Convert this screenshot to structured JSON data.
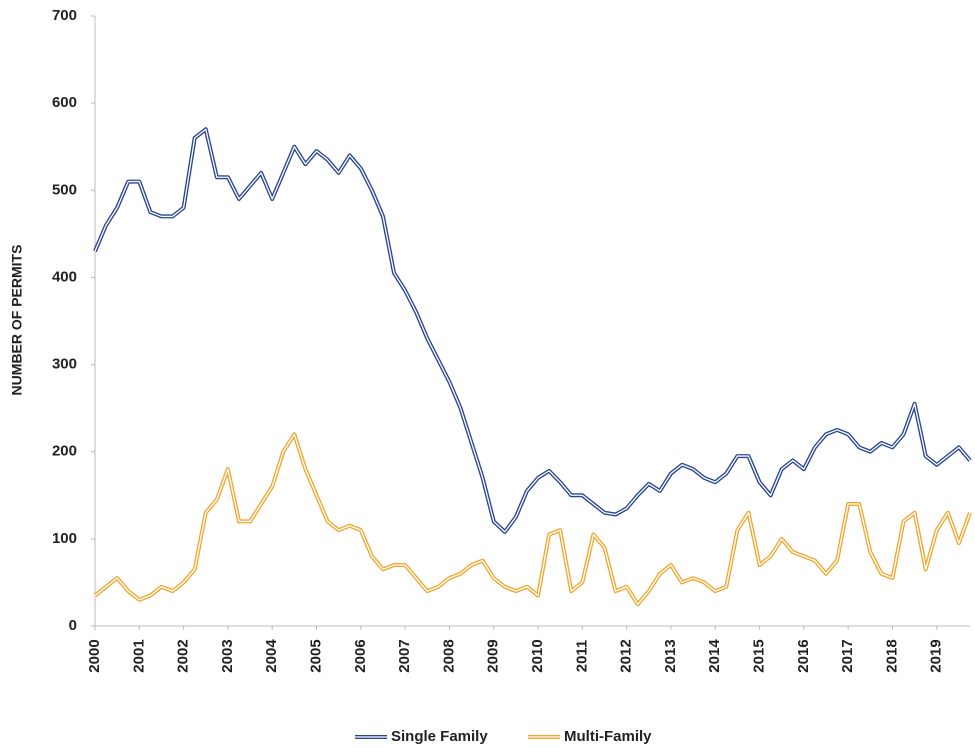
{
  "chart_data": {
    "type": "line",
    "y_label": "NUMBER OF PERMITS",
    "x": [
      2000,
      2000.25,
      2000.5,
      2000.75,
      2001,
      2001.25,
      2001.5,
      2001.75,
      2002,
      2002.25,
      2002.5,
      2002.75,
      2003,
      2003.25,
      2003.5,
      2003.75,
      2004,
      2004.25,
      2004.5,
      2004.75,
      2005,
      2005.25,
      2005.5,
      2005.75,
      2006,
      2006.25,
      2006.5,
      2006.75,
      2007,
      2007.25,
      2007.5,
      2007.75,
      2008,
      2008.25,
      2008.5,
      2008.75,
      2009,
      2009.25,
      2009.5,
      2009.75,
      2010,
      2010.25,
      2010.5,
      2010.75,
      2011,
      2011.25,
      2011.5,
      2011.75,
      2012,
      2012.25,
      2012.5,
      2012.75,
      2013,
      2013.25,
      2013.5,
      2013.75,
      2014,
      2014.25,
      2014.5,
      2014.75,
      2015,
      2015.25,
      2015.5,
      2015.75,
      2016,
      2016.25,
      2016.5,
      2016.75,
      2017,
      2017.25,
      2017.5,
      2017.75,
      2018,
      2018.25,
      2018.5,
      2018.75,
      2019,
      2019.25,
      2019.5,
      2019.75
    ],
    "series": [
      {
        "name": "Single Family",
        "color": "#2a4690",
        "values": [
          430,
          460,
          480,
          510,
          510,
          475,
          470,
          470,
          480,
          560,
          570,
          515,
          515,
          490,
          505,
          520,
          490,
          520,
          550,
          530,
          545,
          535,
          520,
          540,
          525,
          500,
          470,
          405,
          385,
          360,
          330,
          305,
          280,
          250,
          210,
          170,
          120,
          108,
          125,
          155,
          170,
          178,
          165,
          150,
          150,
          140,
          130,
          128,
          135,
          150,
          163,
          155,
          175,
          185,
          180,
          170,
          165,
          175,
          195,
          195,
          165,
          150,
          180,
          190,
          180,
          205,
          220,
          225,
          220,
          205,
          200,
          210,
          205,
          220,
          255,
          195,
          185,
          195,
          205,
          190
        ]
      },
      {
        "name": "Multi-Family",
        "color": "#f0a830",
        "values": [
          35,
          45,
          55,
          40,
          30,
          35,
          45,
          40,
          50,
          65,
          130,
          145,
          180,
          120,
          120,
          140,
          160,
          200,
          220,
          180,
          150,
          120,
          110,
          115,
          110,
          80,
          65,
          70,
          70,
          55,
          40,
          45,
          55,
          60,
          70,
          75,
          55,
          45,
          40,
          45,
          35,
          105,
          110,
          40,
          50,
          105,
          90,
          40,
          45,
          25,
          40,
          60,
          70,
          50,
          55,
          50,
          40,
          45,
          110,
          130,
          70,
          80,
          100,
          85,
          80,
          75,
          60,
          75,
          140,
          140,
          85,
          60,
          55,
          120,
          130,
          65,
          110,
          130,
          95,
          130
        ]
      }
    ],
    "xlim": [
      2000,
      2019.75
    ],
    "xticks": [
      2000,
      2001,
      2002,
      2003,
      2004,
      2005,
      2006,
      2007,
      2008,
      2009,
      2010,
      2011,
      2012,
      2013,
      2014,
      2015,
      2016,
      2017,
      2018,
      2019
    ],
    "ylim": [
      0,
      700
    ],
    "yticks": [
      0,
      100,
      200,
      300,
      400,
      500,
      600,
      700
    ],
    "legend": "bottom"
  }
}
